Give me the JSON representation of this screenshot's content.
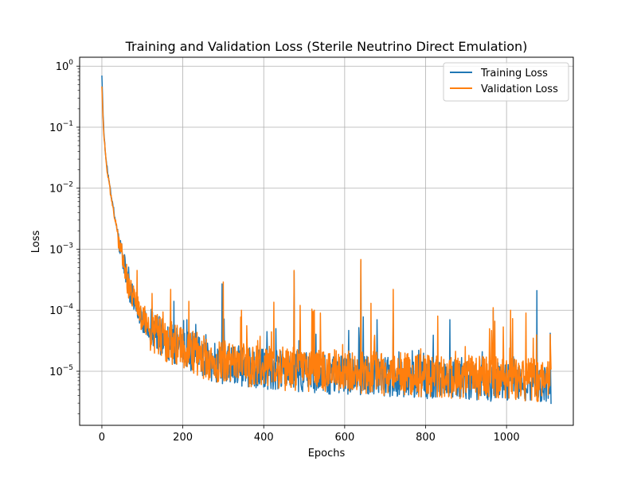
{
  "chart_data": {
    "type": "line",
    "title": "Training and Validation Loss (Sterile Neutrino Direct Emulation)",
    "xlabel": "Epochs",
    "ylabel": "Loss",
    "xlim": [
      -55,
      1165
    ],
    "ylim": [
      1.3e-06,
      1.4
    ],
    "y_scale": "log",
    "grid": true,
    "legend_placement": "upper-right",
    "x_ticks": [
      0,
      200,
      400,
      600,
      800,
      1000
    ],
    "y_ticks": [
      {
        "value": 1e-05,
        "base": "10",
        "exp": "−5"
      },
      {
        "value": 0.0001,
        "base": "10",
        "exp": "−4"
      },
      {
        "value": 0.001,
        "base": "10",
        "exp": "−3"
      },
      {
        "value": 0.01,
        "base": "10",
        "exp": "−2"
      },
      {
        "value": 0.1,
        "base": "10",
        "exp": "−1"
      },
      {
        "value": 1,
        "base": "10",
        "exp": "0"
      }
    ],
    "series": [
      {
        "name": "Training Loss",
        "color": "#1f77b4",
        "points": [
          [
            0,
            0.7
          ],
          [
            2,
            0.25
          ],
          [
            5,
            0.08
          ],
          [
            10,
            0.03
          ],
          [
            20,
            0.01
          ],
          [
            30,
            0.004
          ],
          [
            40,
            0.0018
          ],
          [
            50,
            0.0008
          ],
          [
            60,
            0.0004
          ],
          [
            70,
            0.0002
          ],
          [
            80,
            0.00015
          ],
          [
            90,
            0.0001
          ],
          [
            100,
            7e-05
          ],
          [
            120,
            5e-05
          ],
          [
            140,
            4e-05
          ],
          [
            160,
            3e-05
          ],
          [
            180,
            2.8e-05
          ],
          [
            200,
            2.5e-05
          ],
          [
            230,
            2e-05
          ],
          [
            260,
            1.5e-05
          ],
          [
            300,
            1.3e-05
          ],
          [
            350,
            1.2e-05
          ],
          [
            400,
            1.1e-05
          ],
          [
            450,
            1e-05
          ],
          [
            500,
            9.5e-06
          ],
          [
            550,
            9e-06
          ],
          [
            600,
            8.8e-06
          ],
          [
            650,
            8.5e-06
          ],
          [
            700,
            8e-06
          ],
          [
            750,
            7.8e-06
          ],
          [
            800,
            7.5e-06
          ],
          [
            850,
            7.2e-06
          ],
          [
            900,
            7e-06
          ],
          [
            950,
            6.8e-06
          ],
          [
            1000,
            6.5e-06
          ],
          [
            1050,
            6.2e-06
          ],
          [
            1080,
            6e-06
          ],
          [
            1110,
            5.8e-06
          ]
        ],
        "spikes": [
          [
            150,
            6e-05
          ],
          [
            178,
            0.00014
          ],
          [
            210,
            7e-05
          ],
          [
            297,
            0.00027
          ],
          [
            430,
            5e-05
          ],
          [
            475,
            0.00043
          ],
          [
            520,
            7e-05
          ],
          [
            640,
            0.00065
          ],
          [
            680,
            7e-05
          ],
          [
            720,
            9e-05
          ],
          [
            860,
            7e-05
          ],
          [
            967,
            0.0001
          ],
          [
            1010,
            5e-05
          ],
          [
            1075,
            0.00021
          ],
          [
            1108,
            4.2e-05
          ]
        ],
        "noise_seed": 11,
        "noise_amplitude": 0.55
      },
      {
        "name": "Validation Loss",
        "color": "#ff7f0e",
        "points": [
          [
            0,
            0.5
          ],
          [
            2,
            0.2
          ],
          [
            5,
            0.07
          ],
          [
            10,
            0.028
          ],
          [
            20,
            0.0095
          ],
          [
            30,
            0.0038
          ],
          [
            40,
            0.0017
          ],
          [
            50,
            0.00075
          ],
          [
            60,
            0.00038
          ],
          [
            70,
            0.0002
          ],
          [
            80,
            0.00015
          ],
          [
            90,
            0.0001
          ],
          [
            100,
            7e-05
          ],
          [
            120,
            5e-05
          ],
          [
            140,
            4e-05
          ],
          [
            160,
            3e-05
          ],
          [
            180,
            2.8e-05
          ],
          [
            200,
            2.5e-05
          ],
          [
            230,
            2e-05
          ],
          [
            260,
            1.6e-05
          ],
          [
            300,
            1.4e-05
          ],
          [
            350,
            1.3e-05
          ],
          [
            400,
            1.2e-05
          ],
          [
            450,
            1.1e-05
          ],
          [
            500,
            1.05e-05
          ],
          [
            550,
            1e-05
          ],
          [
            600,
            9.8e-06
          ],
          [
            650,
            9.5e-06
          ],
          [
            700,
            9e-06
          ],
          [
            750,
            8.8e-06
          ],
          [
            800,
            8.5e-06
          ],
          [
            850,
            8.2e-06
          ],
          [
            900,
            8e-06
          ],
          [
            950,
            7.8e-06
          ],
          [
            1000,
            7.5e-06
          ],
          [
            1050,
            7.2e-06
          ],
          [
            1080,
            7e-06
          ],
          [
            1110,
            6.8e-06
          ]
        ],
        "spikes": [
          [
            87,
            0.00045
          ],
          [
            170,
            0.00022
          ],
          [
            215,
            0.00014
          ],
          [
            300,
            0.00029
          ],
          [
            345,
            0.0001
          ],
          [
            475,
            0.00045
          ],
          [
            490,
            0.00012
          ],
          [
            525,
            0.0001
          ],
          [
            540,
            9e-05
          ],
          [
            640,
            0.00068
          ],
          [
            665,
            0.00013
          ],
          [
            720,
            0.00022
          ],
          [
            830,
            8e-05
          ],
          [
            967,
            0.00011
          ],
          [
            1010,
            0.0001
          ],
          [
            1048,
            9e-05
          ],
          [
            1108,
            4e-05
          ]
        ],
        "noise_seed": 29,
        "noise_amplitude": 0.6
      }
    ]
  }
}
